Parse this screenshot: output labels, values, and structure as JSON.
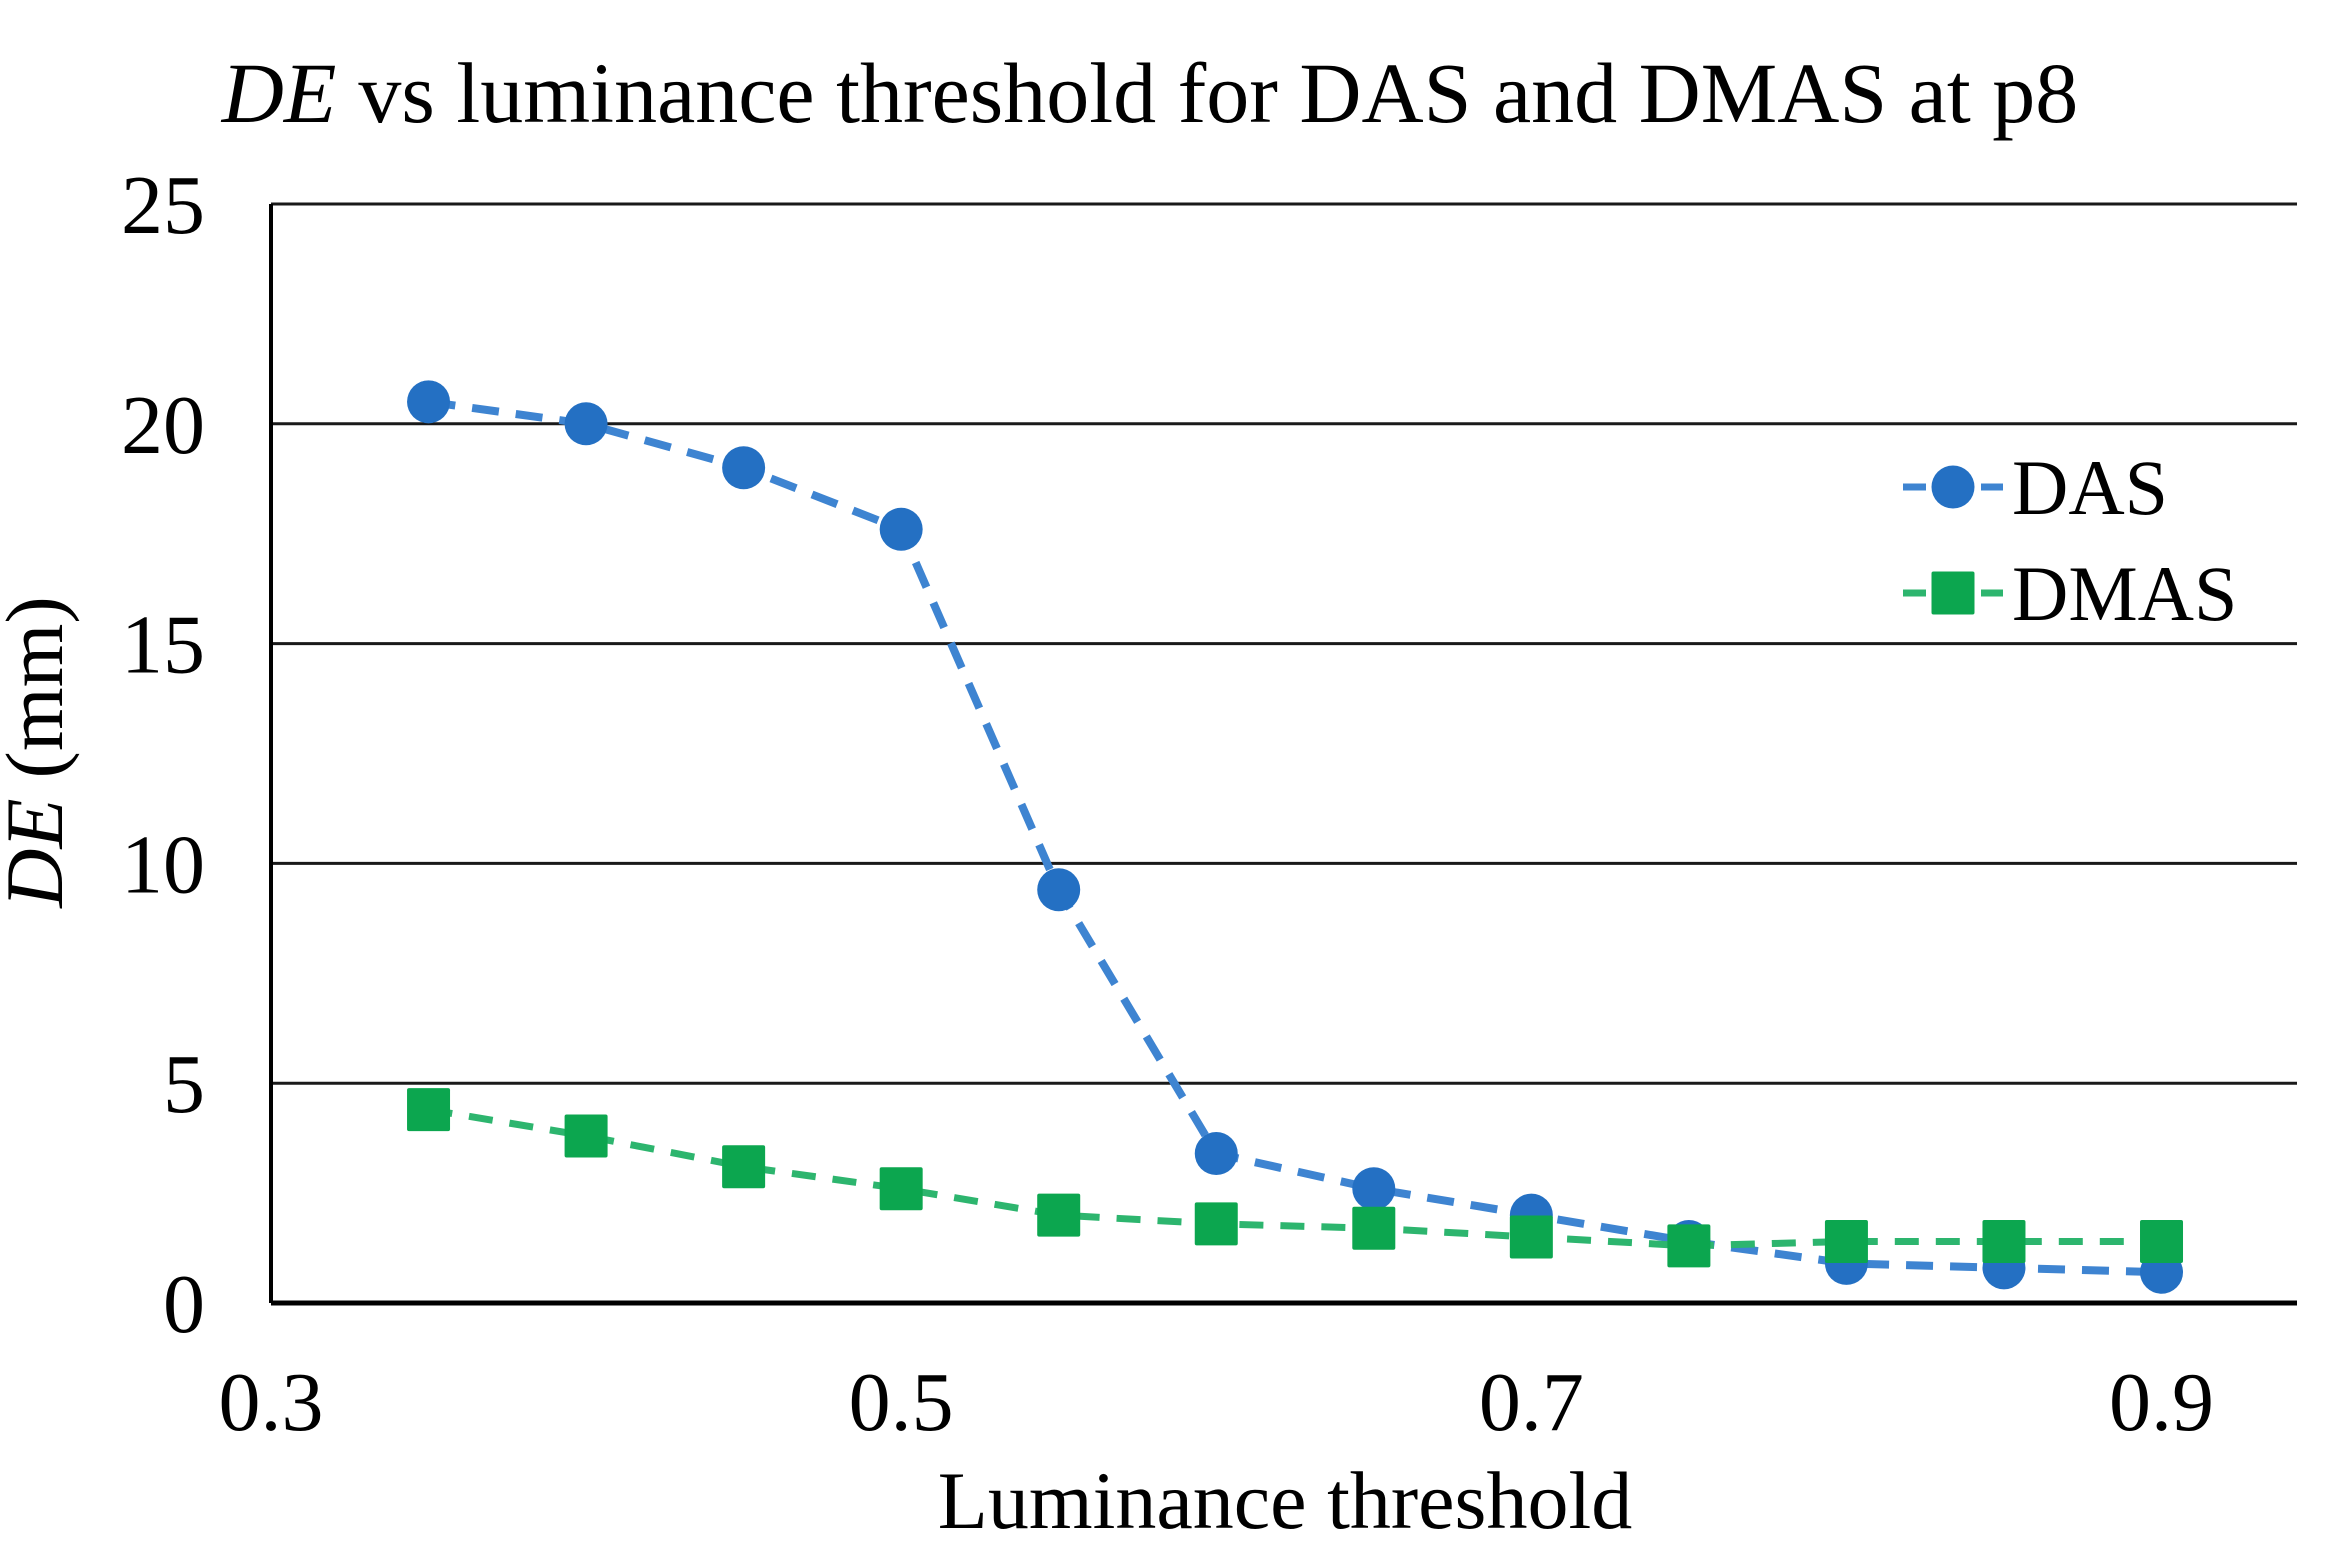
{
  "title": {
    "italic_part": "DE",
    "regular_part": "vs luminance threshold for DAS and DMAS at p8"
  },
  "axes": {
    "x_title": "Luminance threshold",
    "y_title_italic": "DE",
    "y_title_rest": "(mm)"
  },
  "colors": {
    "background": "#ffffff",
    "grid": "#1a1a1a",
    "axis": "#000000",
    "text": "#000000",
    "das_marker": "#2470C3",
    "das_line": "#3E84D1",
    "dmas_marker": "#0CA64F",
    "dmas_line": "#2DB56E"
  },
  "legend": {
    "items": [
      "DAS",
      "DMAS"
    ]
  },
  "chart_data": {
    "type": "line",
    "title": "DE vs luminance threshold for DAS and DMAS at p8",
    "xlabel": "Luminance threshold",
    "ylabel": "DE (mm)",
    "xlim": [
      0.3,
      0.943
    ],
    "ylim": [
      0,
      25
    ],
    "grid": "horizontal",
    "legend_position": "inside-upper-right",
    "xticks": [
      {
        "value": 0.3,
        "label": "0.3"
      },
      {
        "value": 0.5,
        "label": "0.5"
      },
      {
        "value": 0.7,
        "label": "0.7"
      },
      {
        "value": 0.9,
        "label": "0.9"
      }
    ],
    "yticks": [
      {
        "value": 0,
        "label": "0"
      },
      {
        "value": 5,
        "label": "5"
      },
      {
        "value": 10,
        "label": "10"
      },
      {
        "value": 15,
        "label": "15"
      },
      {
        "value": 20,
        "label": "20"
      },
      {
        "value": 25,
        "label": "25"
      }
    ],
    "x": [
      0.35,
      0.4,
      0.45,
      0.5,
      0.55,
      0.6,
      0.65,
      0.7,
      0.75,
      0.8,
      0.85,
      0.9
    ],
    "series": [
      {
        "name": "DAS",
        "marker": "circle",
        "color": "#2470C3",
        "line_color": "#3E84D1",
        "values": [
          20.5,
          20.0,
          19.0,
          17.6,
          9.4,
          3.4,
          2.6,
          2.0,
          1.4,
          0.9,
          0.8,
          0.7
        ]
      },
      {
        "name": "DMAS",
        "marker": "square",
        "color": "#0CA64F",
        "line_color": "#2DB56E",
        "values": [
          4.4,
          3.8,
          3.1,
          2.6,
          2.0,
          1.8,
          1.7,
          1.5,
          1.3,
          1.4,
          1.4,
          1.4
        ]
      }
    ]
  }
}
